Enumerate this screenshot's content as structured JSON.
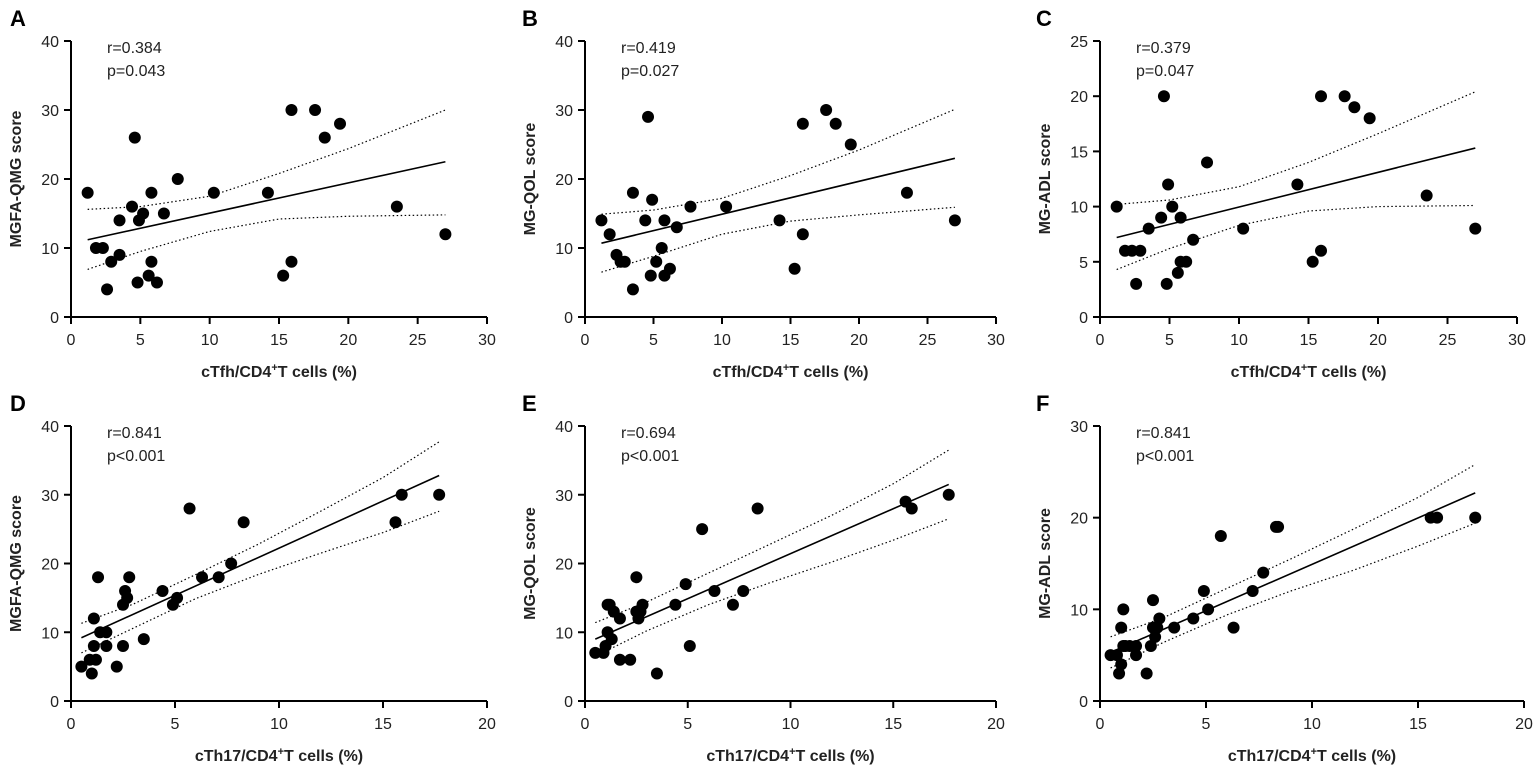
{
  "figure": {
    "background": "#ffffff",
    "ink": "#000000"
  },
  "chart_data": [
    {
      "type": "scatter",
      "panel": "A",
      "stats": [
        "r=0.384",
        "p=0.043"
      ],
      "xlabel": "cTfh/CD4",
      "xlabel_sup": "+",
      "xlabel_tail": "T cells (%)",
      "ylabel": "MGFA-QMG score",
      "xlim": [
        0,
        30
      ],
      "ylim": [
        0,
        40
      ],
      "xticks": [
        0,
        5,
        10,
        15,
        20,
        25,
        30
      ],
      "yticks": [
        0,
        10,
        20,
        30,
        40
      ],
      "x": [
        1.2,
        1.8,
        2.3,
        2.6,
        2.9,
        3.5,
        3.5,
        4.4,
        4.6,
        4.8,
        4.9,
        5.2,
        5.6,
        5.8,
        5.8,
        6.2,
        6.7,
        7.7,
        10.3,
        14.2,
        15.3,
        15.9,
        15.9,
        17.6,
        18.3,
        19.4,
        23.5,
        27.0
      ],
      "y": [
        18,
        10,
        10,
        4,
        8,
        9,
        14,
        16,
        26,
        5,
        14,
        15,
        6,
        8,
        18,
        5,
        15,
        20,
        18,
        18,
        6,
        30,
        8,
        30,
        26,
        28,
        16,
        12
      ],
      "fit": {
        "x": [
          1.2,
          27.0
        ],
        "y": [
          11.2,
          22.5
        ]
      },
      "ci_upper": {
        "x": [
          1.2,
          5,
          10,
          15,
          20,
          27
        ],
        "y": [
          15.6,
          16.0,
          17.5,
          20.8,
          24.4,
          30.0
        ]
      },
      "ci_lower": {
        "x": [
          1.2,
          5,
          10,
          15,
          20,
          27
        ],
        "y": [
          6.9,
          9.5,
          12.4,
          14.2,
          14.6,
          14.8
        ]
      }
    },
    {
      "type": "scatter",
      "panel": "B",
      "stats": [
        "r=0.419",
        "p=0.027"
      ],
      "xlabel": "cTfh/CD4",
      "xlabel_sup": "+",
      "xlabel_tail": "T cells (%)",
      "ylabel": "MG-QOL score",
      "xlim": [
        0,
        30
      ],
      "ylim": [
        0,
        40
      ],
      "xticks": [
        0,
        5,
        10,
        15,
        20,
        25,
        30
      ],
      "yticks": [
        0,
        10,
        20,
        30,
        40
      ],
      "x": [
        1.2,
        1.8,
        2.3,
        2.6,
        2.9,
        3.5,
        3.5,
        4.4,
        4.6,
        4.8,
        4.9,
        5.2,
        5.6,
        5.8,
        5.8,
        6.2,
        6.7,
        7.7,
        10.3,
        14.2,
        15.3,
        15.9,
        15.9,
        17.6,
        18.3,
        19.4,
        23.5,
        27.0
      ],
      "y": [
        14,
        12,
        9,
        8,
        8,
        4,
        18,
        14,
        29,
        6,
        17,
        8,
        10,
        6,
        14,
        7,
        13,
        16,
        16,
        14,
        7,
        28,
        12,
        30,
        28,
        25,
        18,
        14
      ],
      "fit": {
        "x": [
          1.2,
          27.0
        ],
        "y": [
          10.7,
          23.0
        ]
      },
      "ci_upper": {
        "x": [
          1.2,
          5,
          10,
          15,
          20,
          27
        ],
        "y": [
          14.9,
          15.5,
          17.2,
          20.5,
          24.2,
          30.1
        ]
      },
      "ci_lower": {
        "x": [
          1.2,
          5,
          10,
          15,
          20,
          27
        ],
        "y": [
          6.5,
          8.8,
          12.0,
          13.9,
          14.8,
          15.9
        ]
      }
    },
    {
      "type": "scatter",
      "panel": "C",
      "stats": [
        "r=0.379",
        "p=0.047"
      ],
      "xlabel": "cTfh/CD4",
      "xlabel_sup": "+",
      "xlabel_tail": "T cells (%)",
      "ylabel": "MG-ADL score",
      "xlim": [
        0,
        30
      ],
      "ylim": [
        0,
        25
      ],
      "xticks": [
        0,
        5,
        10,
        15,
        20,
        25,
        30
      ],
      "yticks": [
        0,
        5,
        10,
        15,
        20,
        25
      ],
      "x": [
        1.2,
        1.8,
        2.3,
        2.6,
        2.9,
        3.5,
        4.4,
        4.6,
        4.8,
        4.9,
        5.2,
        5.6,
        5.8,
        5.8,
        6.2,
        6.7,
        7.7,
        10.3,
        14.2,
        15.3,
        15.9,
        15.9,
        17.6,
        18.3,
        19.4,
        23.5,
        27.0
      ],
      "y": [
        10,
        6,
        6,
        3,
        6,
        8,
        9,
        20,
        3,
        12,
        10,
        4,
        5,
        9,
        5,
        7,
        14,
        8,
        12,
        5,
        20,
        6,
        20,
        19,
        18,
        11,
        8
      ],
      "fit": {
        "x": [
          1.2,
          27.0
        ],
        "y": [
          7.2,
          15.3
        ]
      },
      "ci_upper": {
        "x": [
          1.2,
          5,
          10,
          15,
          20,
          27
        ],
        "y": [
          10.2,
          10.6,
          11.8,
          14.0,
          16.6,
          20.4
        ]
      },
      "ci_lower": {
        "x": [
          1.2,
          5,
          10,
          15,
          20,
          27
        ],
        "y": [
          4.3,
          6.2,
          8.3,
          9.6,
          10.0,
          10.1
        ]
      }
    },
    {
      "type": "scatter",
      "panel": "D",
      "stats": [
        "r=0.841",
        "p<0.001"
      ],
      "xlabel": "cTh17/CD4",
      "xlabel_sup": "+",
      "xlabel_tail": "T cells (%)",
      "ylabel": "MGFA-QMG score",
      "xlim": [
        0,
        20
      ],
      "ylim": [
        0,
        40
      ],
      "xticks": [
        0,
        5,
        10,
        15,
        20
      ],
      "yticks": [
        0,
        10,
        20,
        30,
        40
      ],
      "x": [
        0.5,
        0.9,
        1.0,
        1.1,
        1.1,
        1.2,
        1.3,
        1.4,
        1.7,
        1.7,
        2.2,
        2.5,
        2.5,
        2.6,
        2.7,
        2.8,
        3.5,
        4.4,
        4.9,
        5.1,
        5.7,
        6.3,
        7.1,
        7.7,
        8.3,
        15.6,
        15.9,
        17.7
      ],
      "y": [
        5,
        6,
        4,
        8,
        12,
        6,
        18,
        10,
        8,
        10,
        5,
        8,
        14,
        16,
        15,
        18,
        9,
        16,
        14,
        15,
        28,
        18,
        18,
        20,
        26,
        26,
        30,
        30
      ],
      "fit": {
        "x": [
          0.5,
          17.7
        ],
        "y": [
          9.2,
          32.8
        ]
      },
      "ci_upper": {
        "x": [
          0.5,
          3,
          6,
          9,
          12,
          15,
          17.7
        ],
        "y": [
          11.3,
          14.1,
          18.4,
          22.8,
          27.6,
          32.5,
          37.7
        ]
      },
      "ci_lower": {
        "x": [
          0.5,
          3,
          6,
          9,
          12,
          15,
          17.7
        ],
        "y": [
          7.0,
          10.6,
          14.9,
          18.4,
          21.5,
          24.5,
          27.6
        ]
      }
    },
    {
      "type": "scatter",
      "panel": "E",
      "stats": [
        "r=0.694",
        "p<0.001"
      ],
      "xlabel": "cTh17/CD4",
      "xlabel_sup": "+",
      "xlabel_tail": "T cells (%)",
      "ylabel": "MG-QOL score",
      "xlim": [
        0,
        20
      ],
      "ylim": [
        0,
        40
      ],
      "xticks": [
        0,
        5,
        10,
        15,
        20
      ],
      "yticks": [
        0,
        10,
        20,
        30,
        40
      ],
      "x": [
        0.5,
        0.9,
        1.0,
        1.1,
        1.1,
        1.2,
        1.3,
        1.4,
        1.7,
        1.7,
        2.2,
        2.5,
        2.5,
        2.6,
        2.7,
        2.8,
        3.5,
        4.4,
        4.9,
        5.1,
        5.7,
        6.3,
        7.2,
        7.7,
        8.4,
        15.6,
        15.9,
        17.7
      ],
      "y": [
        7,
        7,
        8,
        10,
        14,
        14,
        9,
        13,
        6,
        12,
        6,
        13,
        18,
        12,
        13,
        14,
        4,
        14,
        17,
        8,
        25,
        16,
        14,
        16,
        28,
        29,
        28,
        30
      ],
      "fit": {
        "x": [
          0.5,
          17.7
        ],
        "y": [
          9.0,
          31.5
        ]
      },
      "ci_upper": {
        "x": [
          0.5,
          3,
          6,
          9,
          12,
          15,
          17.7
        ],
        "y": [
          11.4,
          14.4,
          18.6,
          22.8,
          27.0,
          31.6,
          36.5
        ]
      },
      "ci_lower": {
        "x": [
          0.5,
          3,
          6,
          9,
          12,
          15,
          17.7
        ],
        "y": [
          6.5,
          10.2,
          14.0,
          17.2,
          20.2,
          23.4,
          26.5
        ]
      }
    },
    {
      "type": "scatter",
      "panel": "F",
      "stats": [
        "r=0.841",
        "p<0.001"
      ],
      "xlabel": "cTh17/CD4",
      "xlabel_sup": "+",
      "xlabel_tail": "T cells (%)",
      "ylabel": "MG-ADL score",
      "xlim": [
        0,
        20
      ],
      "ylim": [
        0,
        30
      ],
      "xticks": [
        0,
        5,
        10,
        15,
        20
      ],
      "yticks": [
        0,
        10,
        20,
        30
      ],
      "x": [
        0.5,
        0.8,
        0.9,
        1.0,
        1.0,
        1.1,
        1.1,
        1.2,
        1.4,
        1.7,
        1.7,
        2.2,
        2.4,
        2.5,
        2.5,
        2.6,
        2.7,
        2.8,
        3.5,
        4.4,
        4.9,
        5.1,
        5.7,
        6.3,
        7.2,
        7.7,
        8.3,
        8.4,
        15.6,
        15.9,
        17.7
      ],
      "y": [
        5,
        5,
        3,
        8,
        4,
        6,
        10,
        6,
        6,
        5,
        6,
        3,
        6,
        8,
        11,
        7,
        8,
        9,
        8,
        9,
        12,
        10,
        18,
        8,
        12,
        14,
        19,
        19,
        20,
        20,
        20
      ],
      "fit": {
        "x": [
          0.5,
          17.7
        ],
        "y": [
          5.3,
          22.7
        ]
      },
      "ci_upper": {
        "x": [
          0.5,
          3,
          6,
          9,
          12,
          15,
          17.7
        ],
        "y": [
          7.0,
          9.1,
          12.3,
          15.5,
          18.8,
          22.2,
          25.8
        ]
      },
      "ci_lower": {
        "x": [
          0.5,
          3,
          6,
          9,
          12,
          15,
          17.7
        ],
        "y": [
          3.6,
          6.4,
          9.4,
          12.0,
          14.3,
          16.9,
          19.4
        ]
      }
    }
  ]
}
